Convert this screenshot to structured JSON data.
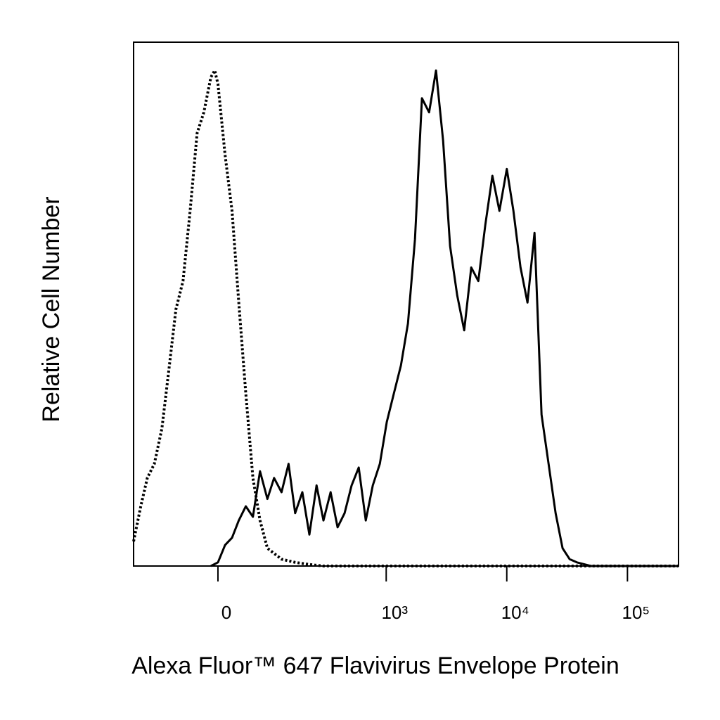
{
  "chart_data": {
    "type": "line",
    "xlabel": "Alexa Fluor™ 647 Flavivirus Envelope Protein",
    "ylabel": "Relative Cell Number",
    "xscale": "biexponential",
    "xlim": [
      -194,
      265000
    ],
    "ylim": [
      0,
      100
    ],
    "xticks": [
      0,
      {
        "value": 1000,
        "label": "10³"
      },
      {
        "value": 10000,
        "label": "10⁴"
      },
      {
        "value": 100000,
        "label": "10⁵"
      }
    ],
    "series": [
      {
        "color": "#000000",
        "line_style": "dotted",
        "x": [
          -194,
          -167,
          -145,
          -124,
          -104,
          -88,
          -72,
          -58,
          -45,
          -33,
          -22,
          -11,
          -5,
          0,
          11,
          22,
          33,
          45,
          58,
          72,
          88,
          124,
          167,
          224,
          297,
          265000
        ],
        "values": [
          4.7,
          11.4,
          16.8,
          19.5,
          26.2,
          36.9,
          49,
          54.4,
          67.8,
          82.6,
          86.6,
          93.3,
          94.6,
          92,
          78.5,
          67.8,
          50.3,
          32.9,
          16.8,
          8.7,
          3.4,
          1.3,
          0.7,
          0.3,
          0,
          0
        ]
      },
      {
        "color": "#000000",
        "line_style": "solid",
        "x": [
          -11,
          0,
          11,
          22,
          33,
          45,
          58,
          72,
          88,
          104,
          124,
          145,
          167,
          194,
          224,
          259,
          297,
          342,
          392,
          449,
          515,
          590,
          676,
          773,
          885,
          1012,
          1157,
          1325,
          1515,
          1733,
          1980,
          2270,
          2590,
          2965,
          3390,
          3880,
          4440,
          5075,
          5810,
          6640,
          7600,
          8690,
          10000,
          11350,
          12990,
          14850,
          16970,
          19420,
          22200,
          25400,
          29000,
          33200,
          38100,
          49800,
          265000
        ],
        "values": [
          0,
          0.7,
          4,
          5.4,
          8.7,
          11.4,
          9.4,
          18.1,
          12.8,
          16.8,
          14.1,
          19.5,
          10.1,
          14.1,
          6,
          15.4,
          8.7,
          14.1,
          7.4,
          10.1,
          15.4,
          18.8,
          8.7,
          15.4,
          19.5,
          27.5,
          32.9,
          38.3,
          46.3,
          62.4,
          89.3,
          86.6,
          94.6,
          81.2,
          61.1,
          51.7,
          45,
          57,
          54.4,
          65.1,
          74.5,
          67.8,
          75.8,
          67.8,
          57,
          50.3,
          63.6,
          28.9,
          19.5,
          10.1,
          3.4,
          1.3,
          0.7,
          0,
          0
        ]
      }
    ]
  }
}
